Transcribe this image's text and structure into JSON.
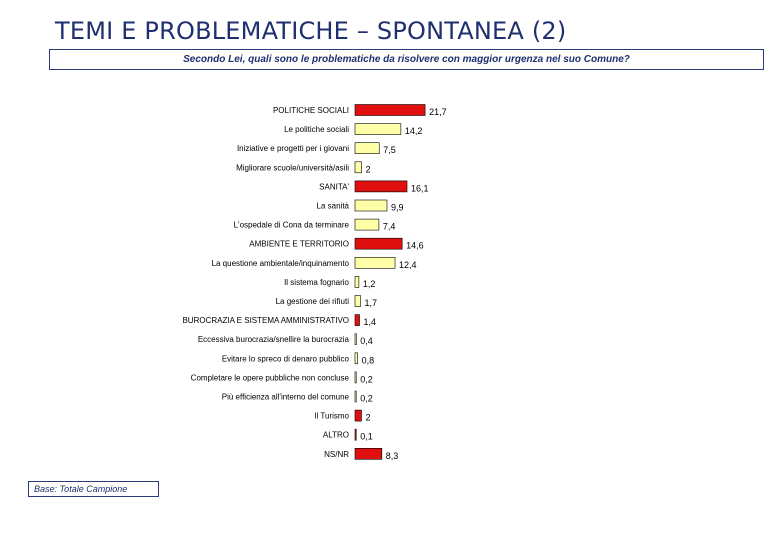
{
  "page": {
    "title": "TEMI E PROBLEMATICHE – SPONTANEA (2)",
    "question": "Secondo Lei, quali sono le problematiche da risolvere con maggior urgenza nel suo Comune?",
    "base": "Base: Totale Campione"
  },
  "chart_data": {
    "type": "bar",
    "orientation": "horizontal",
    "title": "",
    "xlabel": "",
    "ylabel": "",
    "xlim": [
      0,
      22
    ],
    "grid": false,
    "legend": "none",
    "colors": {
      "main": "#e01010",
      "sub": "#ffffa8",
      "outline": "#000000"
    },
    "categories": [
      "POLITICHE SOCIALI",
      "Le politiche sociali",
      "Iniziative e progetti per i giovani",
      "Migliorare scuole/università/asili",
      "SANITA'",
      "La sanità",
      "L'ospedale di Cona da terminare",
      "AMBIENTE E TERRITORIO",
      "La questione ambientale/inquinamento",
      "Il sistema fognario",
      "La gestione dei rifiuti",
      "BUROCRAZIA E SISTEMA AMMINISTRATIVO",
      "Eccessiva burocrazia/snellire la burocrazia",
      "Evitare lo spreco di denaro pubblico",
      "Completare le opere pubbliche non concluse",
      "Più efficienza all'interno del comune",
      "Il Turismo",
      "ALTRO",
      "NS/NR"
    ],
    "values": [
      21.7,
      14.2,
      7.5,
      2,
      16.1,
      9.9,
      7.4,
      14.6,
      12.4,
      1.2,
      1.7,
      1.4,
      0.4,
      0.8,
      0.2,
      0.2,
      2,
      0.1,
      8.3
    ],
    "value_labels": [
      "21,7",
      "14,2",
      "7,5",
      "2",
      "16,1",
      "9,9",
      "7,4",
      "14,6",
      "12,4",
      "1,2",
      "1,7",
      "1,4",
      "0,4",
      "0,8",
      "0,2",
      "0,2",
      "2",
      "0,1",
      "8,3"
    ],
    "bar_kind": [
      "main",
      "sub",
      "sub",
      "sub",
      "main",
      "sub",
      "sub",
      "main",
      "sub",
      "sub",
      "sub",
      "main",
      "sub",
      "sub",
      "sub",
      "sub",
      "main",
      "main",
      "main"
    ]
  }
}
